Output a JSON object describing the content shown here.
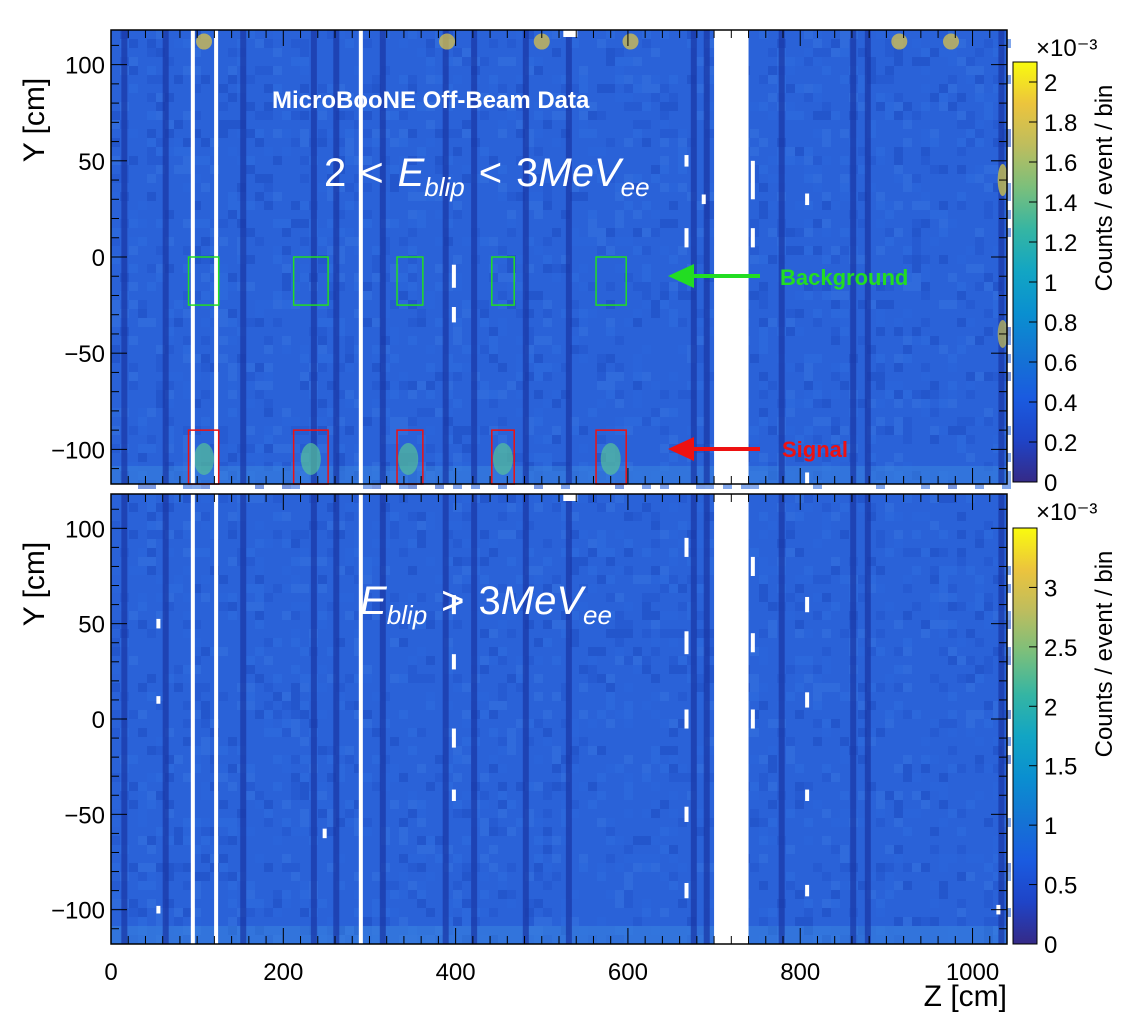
{
  "chart_data": [
    {
      "type": "heatmap",
      "panel": "top",
      "title": "MicroBooNE Off-Beam Data",
      "energy_cut": {
        "lower": "2",
        "lt1": "<",
        "var_main": "E",
        "var_sub": "blip",
        "lt2": "<",
        "upper": "3",
        "unit_main": "MeV",
        "unit_sub": "ee"
      },
      "xlabel": "",
      "ylabel": "Y [cm]",
      "xlim": [
        0,
        1040
      ],
      "ylim": [
        -118,
        118
      ],
      "y_ticks": [
        "100",
        "50",
        "0",
        "−50",
        "−100"
      ],
      "y_tick_values": [
        100,
        50,
        0,
        -50,
        -100
      ],
      "colorbar": {
        "title": "Counts / event / bin",
        "exponent": "×10⁻³",
        "range": [
          0,
          2.1
        ],
        "tick_labels": [
          "0",
          "0.2",
          "0.4",
          "0.6",
          "0.8",
          "1",
          "1.2",
          "1.4",
          "1.6",
          "1.8",
          "2"
        ],
        "tick_values": [
          0,
          0.2,
          0.4,
          0.6,
          0.8,
          1.0,
          1.2,
          1.4,
          1.6,
          1.8,
          2.0
        ]
      },
      "dead_wire_bands_z": [
        95,
        122,
        290,
        700,
        740
      ],
      "boxes": {
        "background": {
          "label": "Background",
          "y_range": [
            -25,
            0
          ],
          "z_ranges": [
            [
              90,
              125
            ],
            [
              212,
              252
            ],
            [
              332,
              362
            ],
            [
              442,
              468
            ],
            [
              563,
              598
            ]
          ]
        },
        "signal": {
          "label": "Signal",
          "y_range": [
            -118,
            -90
          ],
          "z_ranges": [
            [
              90,
              125
            ],
            [
              212,
              252
            ],
            [
              332,
              362
            ],
            [
              442,
              468
            ],
            [
              563,
              598
            ]
          ]
        }
      }
    },
    {
      "type": "heatmap",
      "panel": "bottom",
      "energy_cut": {
        "var_main": "E",
        "var_sub": "blip",
        "gt": ">",
        "value": "3",
        "unit_main": "MeV",
        "unit_sub": "ee"
      },
      "xlabel": "Z [cm]",
      "ylabel": "Y [cm]",
      "xlim": [
        0,
        1040
      ],
      "ylim": [
        -118,
        118
      ],
      "x_ticks": [
        "0",
        "200",
        "400",
        "600",
        "800",
        "1000"
      ],
      "x_tick_values": [
        0,
        200,
        400,
        600,
        800,
        1000
      ],
      "y_ticks": [
        "100",
        "50",
        "0",
        "−50",
        "−100"
      ],
      "y_tick_values": [
        100,
        50,
        0,
        -50,
        -100
      ],
      "colorbar": {
        "title": "Counts / event / bin",
        "exponent": "×10⁻³",
        "range": [
          0,
          3.5
        ],
        "tick_labels": [
          "0",
          "0.5",
          "1",
          "1.5",
          "2",
          "2.5",
          "3"
        ],
        "tick_values": [
          0,
          0.5,
          1.0,
          1.5,
          2.0,
          2.5,
          3.0
        ]
      },
      "dead_wire_bands_z": [
        95,
        122,
        290,
        700,
        740
      ]
    }
  ],
  "colors": {
    "background_box": "#22dd22",
    "signal_box": "#ee1111",
    "base_fill": "#2a62d8"
  }
}
